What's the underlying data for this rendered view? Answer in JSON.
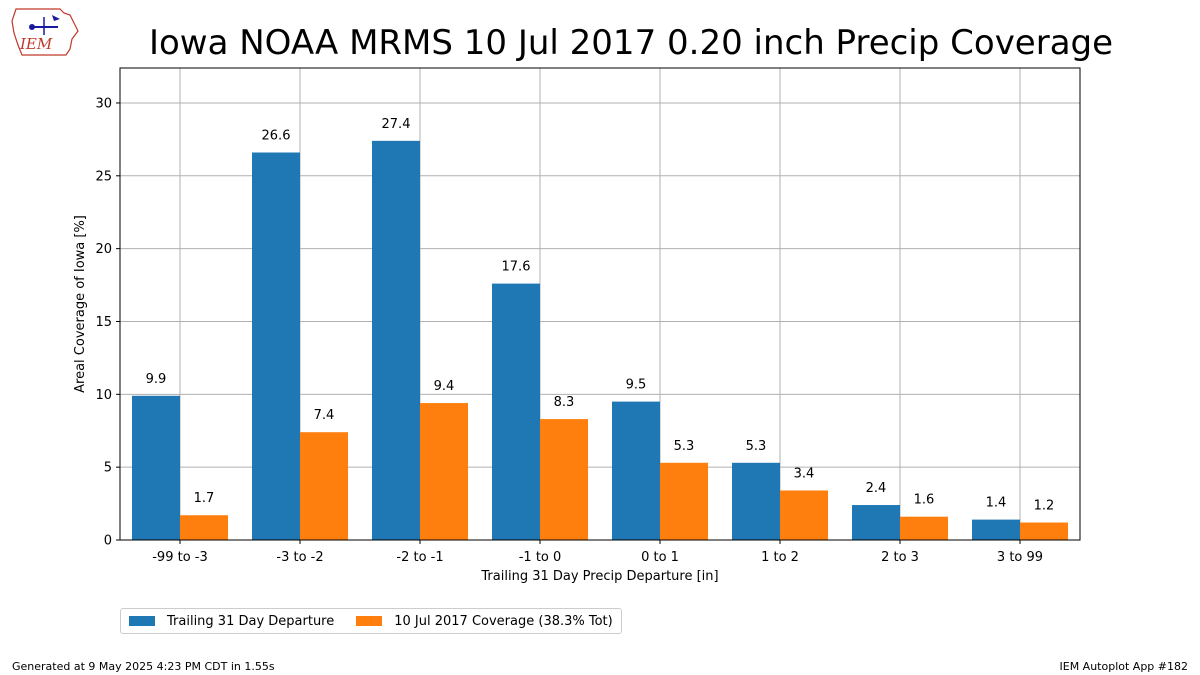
{
  "logo": {
    "text": "IEM"
  },
  "chart_data": {
    "type": "bar",
    "title": "Iowa NOAA MRMS 10 Jul 2017 0.20 inch Precip Coverage",
    "xlabel": "Trailing 31 Day Precip Departure [in]",
    "ylabel": "Areal Coverage of Iowa [%]",
    "ylim": [
      0,
      32.4
    ],
    "yticks": [
      0,
      5,
      10,
      15,
      20,
      25,
      30
    ],
    "grid": true,
    "legend_position": "bottom-left outside",
    "categories": [
      "-99 to -3",
      "-3 to -2",
      "-2 to -1",
      "-1 to 0",
      "0 to 1",
      "1 to 2",
      "2 to 3",
      "3 to 99"
    ],
    "series": [
      {
        "name": "Trailing 31 Day Departure",
        "color": "#1f77b4",
        "values": [
          9.9,
          26.6,
          27.4,
          17.6,
          9.5,
          5.3,
          2.4,
          1.4
        ]
      },
      {
        "name": "10 Jul 2017 Coverage (38.3% Tot)",
        "color": "#ff7f0e",
        "values": [
          1.7,
          7.4,
          9.4,
          8.3,
          5.3,
          3.4,
          1.6,
          1.2
        ]
      }
    ]
  },
  "footer": {
    "left": "Generated at 9 May 2025 4:23 PM CDT in 1.55s",
    "right": "IEM Autoplot App #182"
  }
}
